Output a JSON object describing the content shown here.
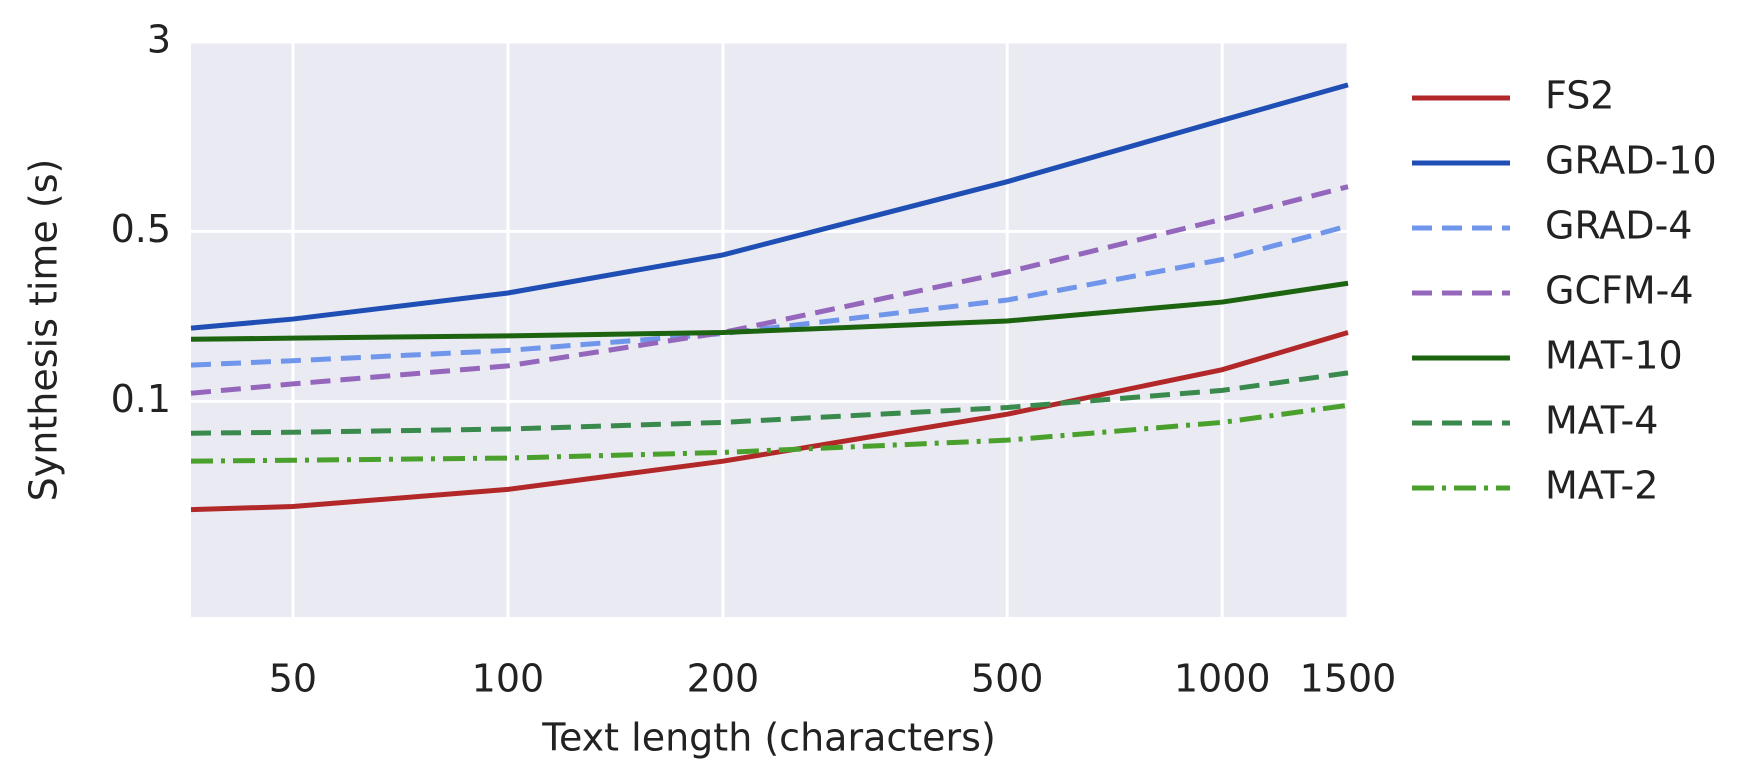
{
  "chart_data": {
    "type": "line",
    "x_label": "Text length (characters)",
    "y_label": "Synthesis time (s)",
    "x_scale": "log",
    "y_scale": "log",
    "grid": true,
    "legend": "outside right",
    "x": [
      36,
      50,
      100,
      200,
      500,
      1000,
      1500
    ],
    "xlim": [
      36,
      1500
    ],
    "xticks": [
      50,
      100,
      200,
      500,
      1000,
      1500
    ],
    "ylim": [
      0.013,
      3
    ],
    "yticks": [
      0.1,
      0.5,
      3
    ],
    "series": [
      {
        "name": "FS2",
        "color": "#b22828",
        "style": "solid",
        "values": [
          0.0359,
          0.037,
          0.0435,
          0.0568,
          0.0886,
          0.135,
          0.192
        ]
      },
      {
        "name": "GRAD-10",
        "color": "#1f4fb4",
        "style": "solid",
        "values": [
          0.2,
          0.218,
          0.279,
          0.4,
          0.8,
          1.43,
          2.0
        ]
      },
      {
        "name": "GRAD-4",
        "color": "#6f96eb",
        "style": "dashed",
        "values": [
          0.141,
          0.147,
          0.162,
          0.19,
          0.261,
          0.383,
          0.526
        ]
      },
      {
        "name": "GCFM-4",
        "color": "#9467bd",
        "style": "dashed",
        "values": [
          0.108,
          0.118,
          0.14,
          0.192,
          0.34,
          0.561,
          0.763
        ]
      },
      {
        "name": "MAT-10",
        "color": "#1d6410",
        "style": "solid",
        "values": [
          0.18,
          0.182,
          0.186,
          0.192,
          0.214,
          0.256,
          0.306
        ]
      },
      {
        "name": "MAT-4",
        "color": "#3a8a4e",
        "style": "dashed",
        "values": [
          0.074,
          0.0747,
          0.077,
          0.082,
          0.0944,
          0.111,
          0.131
        ]
      },
      {
        "name": "MAT-2",
        "color": "#4aa02c",
        "style": "dashdot",
        "values": [
          0.0568,
          0.0573,
          0.0585,
          0.0617,
          0.0693,
          0.082,
          0.0964
        ]
      }
    ]
  }
}
